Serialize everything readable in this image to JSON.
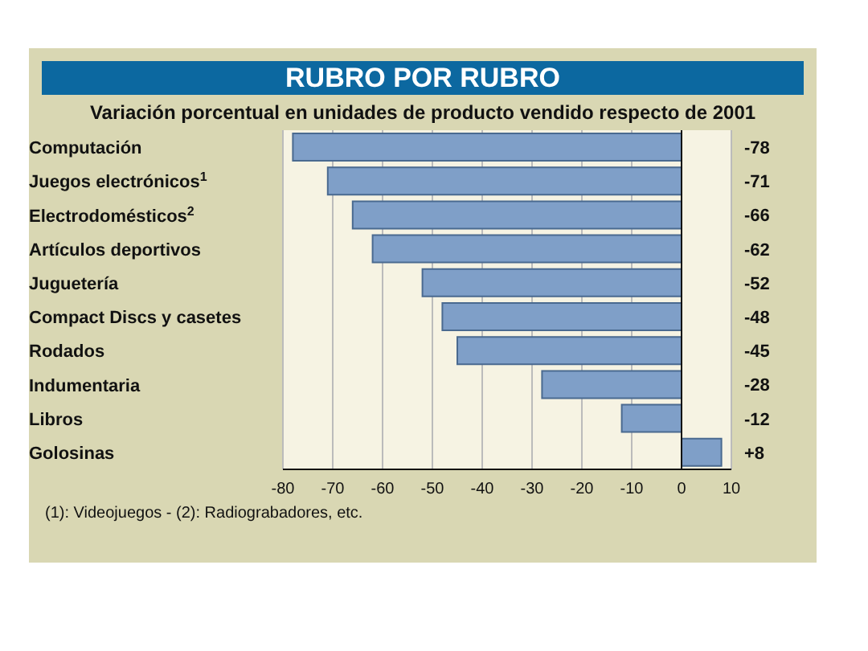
{
  "chart_data": {
    "type": "bar",
    "orientation": "horizontal",
    "title": "RUBRO POR RUBRO",
    "subtitle": "Variación porcentual en unidades de producto vendido respecto de 2001",
    "categories": [
      "Computación",
      "Juegos electrónicos$^{1}$",
      "Electrodomésticos$^{2}$",
      "Artículos deportivos",
      "Juguetería",
      "Compact Discs y casetes",
      "Rodados",
      "Indumentaria",
      "Libros",
      "Golosinas"
    ],
    "values": [
      -78,
      -71,
      -66,
      -62,
      -52,
      -48,
      -45,
      -28,
      -12,
      8
    ],
    "value_labels": [
      "-78",
      "-71",
      "-66",
      "-62",
      "-52",
      "-48",
      "-45",
      "-28",
      "-12",
      "+8"
    ],
    "color": "#7f9fc8",
    "xlim": [
      -80,
      10
    ],
    "xticks": [
      -80,
      -70,
      -60,
      -50,
      -40,
      -30,
      -20,
      -10,
      0,
      10
    ],
    "grid": "x",
    "annotations": [
      "(1): Videojuegos - (2): Radiograbadores, etc."
    ]
  }
}
